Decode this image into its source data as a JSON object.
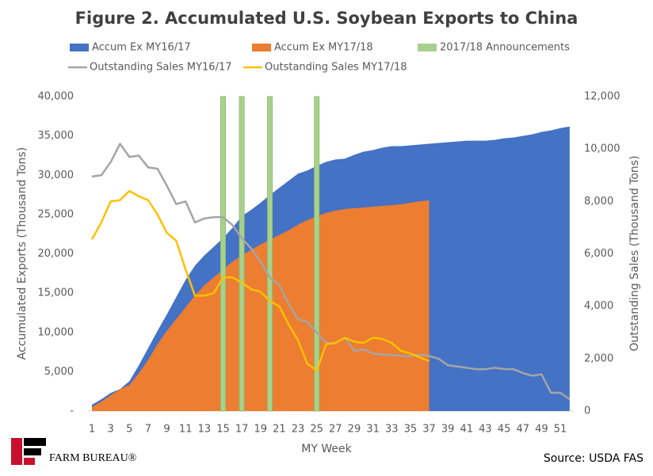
{
  "chart_data": {
    "type": "combo",
    "title": "Figure 2. Accumulated U.S. Soybean Exports to China",
    "x_label": "MY Week",
    "y_label": "Accumulated Exports (Thousand Tons)",
    "y2_label": "Outstanding Sales (Thousand Tons)",
    "source": "Source: USDA FAS",
    "logo": "FARM BUREAU®",
    "categories": [
      1,
      null,
      3,
      null,
      5,
      null,
      7,
      null,
      9,
      null,
      11,
      null,
      13,
      null,
      15,
      null,
      17,
      null,
      19,
      null,
      21,
      null,
      23,
      null,
      25,
      null,
      27,
      null,
      29,
      null,
      31,
      null,
      33,
      null,
      35,
      null,
      37,
      null,
      39,
      null,
      41,
      null,
      43,
      null,
      45,
      null,
      47,
      null,
      49,
      null,
      51,
      null
    ],
    "ylim": [
      0,
      40000
    ],
    "yticks": [
      {
        "value": 0,
        "label": "-"
      },
      {
        "value": 5000,
        "label": "5,000"
      },
      {
        "value": 10000,
        "label": "10,000"
      },
      {
        "value": 15000,
        "label": "15,000"
      },
      {
        "value": 20000,
        "label": "20,000"
      },
      {
        "value": 25000,
        "label": "25,000"
      },
      {
        "value": 30000,
        "label": "30,000"
      },
      {
        "value": 35000,
        "label": "35,000"
      },
      {
        "value": 40000,
        "label": "40,000"
      }
    ],
    "y2lim": [
      0,
      12000
    ],
    "y2ticks": [
      0,
      {
        "value": 2000,
        "label": "2,000"
      },
      {
        "value": 4000,
        "label": "4,000"
      },
      {
        "value": 6000,
        "label": "6,000"
      },
      {
        "value": 8000,
        "label": "8,000"
      },
      {
        "value": 10000,
        "label": "10,000"
      },
      {
        "value": 12000,
        "label": "12,000"
      }
    ],
    "series": [
      {
        "name": "Accum Ex MY16/17",
        "type": "area",
        "color": "#4472c4",
        "values": [
          800,
          1500,
          2300,
          2800,
          3800,
          5800,
          8000,
          10200,
          12300,
          14500,
          16700,
          18500,
          19800,
          20900,
          22000,
          23300,
          24800,
          25600,
          26500,
          27500,
          28400,
          29300,
          30200,
          30600,
          31200,
          31700,
          32000,
          32100,
          32600,
          33000,
          33200,
          33500,
          33700,
          33700,
          33800,
          33900,
          34000,
          34100,
          34200,
          34300,
          34400,
          34400,
          34400,
          34500,
          34700,
          34800,
          35000,
          35200,
          35500,
          35700,
          36000,
          36200
        ]
      },
      {
        "name": "Accum Ex MY17/18",
        "type": "area",
        "color": "#ed7d31",
        "values": [
          500,
          1200,
          2000,
          2800,
          3300,
          4800,
          6500,
          8500,
          10200,
          11700,
          13200,
          14700,
          16000,
          17000,
          18000,
          19000,
          19800,
          20500,
          21200,
          21800,
          22400,
          23000,
          23700,
          24300,
          24800,
          25200,
          25500,
          25700,
          25800,
          25900,
          26000,
          26100,
          26200,
          26300,
          26500,
          26700,
          26800,
          null,
          null,
          null,
          null,
          null,
          null,
          null,
          null,
          null,
          null,
          null,
          null,
          null,
          null,
          null
        ]
      },
      {
        "name": "2017/18 Announcements",
        "type": "bar",
        "color": "#a9d18e",
        "values": [
          null,
          null,
          null,
          null,
          null,
          null,
          null,
          null,
          null,
          null,
          null,
          null,
          null,
          null,
          40000,
          null,
          40000,
          null,
          null,
          40000,
          null,
          null,
          null,
          null,
          40000,
          null,
          null,
          null,
          null,
          null,
          null,
          null,
          null,
          null,
          null,
          null,
          null,
          null,
          null,
          null,
          null,
          null,
          null,
          null,
          null,
          null,
          null,
          null,
          null,
          null,
          null,
          null
        ]
      },
      {
        "name": "Outstanding Sales MY16/17",
        "type": "line",
        "axis": "y2",
        "color": "#a5a5a5",
        "values": [
          8950,
          9000,
          9500,
          10200,
          9700,
          9750,
          9300,
          9250,
          8600,
          7900,
          8000,
          7200,
          7350,
          7400,
          7400,
          7100,
          6600,
          6200,
          5700,
          5100,
          4800,
          4100,
          3500,
          3400,
          3000,
          2600,
          2600,
          2800,
          2300,
          2350,
          2200,
          2150,
          2150,
          2100,
          2100,
          2150,
          2100,
          2000,
          1750,
          1700,
          1650,
          1600,
          1600,
          1650,
          1600,
          1600,
          1450,
          1350,
          1400,
          700,
          700,
          450
        ]
      },
      {
        "name": "Outstanding Sales MY17/18",
        "type": "line",
        "axis": "y2",
        "color": "#ffc000",
        "values": [
          6550,
          7200,
          8000,
          8050,
          8400,
          8200,
          8050,
          7500,
          6800,
          6500,
          5400,
          4400,
          4400,
          4500,
          5100,
          5100,
          4900,
          4650,
          4550,
          4200,
          4000,
          3300,
          2700,
          1800,
          1550,
          2550,
          2600,
          2800,
          2650,
          2600,
          2800,
          2750,
          2600,
          2300,
          2200,
          2050,
          1900,
          null,
          null,
          null,
          null,
          null,
          null,
          null,
          null,
          null,
          null,
          null,
          null,
          null,
          null,
          null
        ]
      }
    ]
  }
}
